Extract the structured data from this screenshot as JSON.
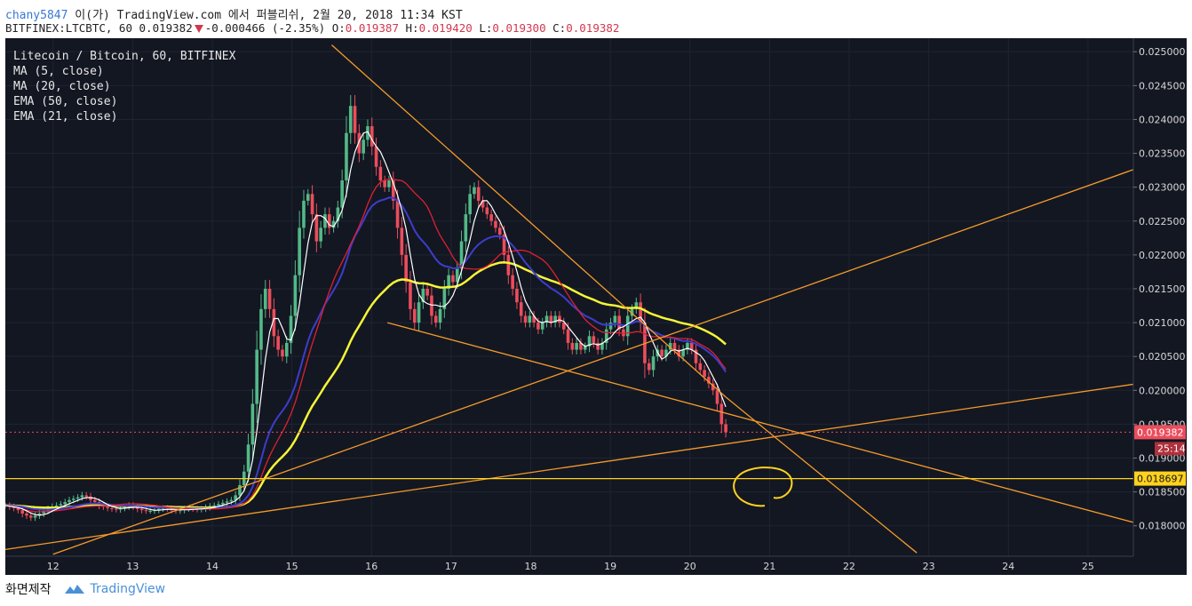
{
  "header": {
    "user": "chany5847",
    "publish_text": " 이(가) TradingView.com 에서 퍼블리쉬, 2월 20, 2018 11:34 KST",
    "symbol_line": "BITFINEX:LTCBTC, 60 0.019382",
    "change": "-0.000466 (-2.35%)",
    "o_label": "O:",
    "o_value": "0.019387",
    "h_label": "H:",
    "h_value": "0.019420",
    "l_label": "L:",
    "l_value": "0.019300",
    "c_label": "C:",
    "c_value": "0.019382"
  },
  "legend": {
    "title": "Litecoin / Bitcoin, 60, BITFINEX",
    "ma5": "MA (5, close)",
    "ma20": "MA (20, close)",
    "ema50": "EMA (50, close)",
    "ema21": "EMA (21, close)"
  },
  "footer": {
    "label": "화면제작",
    "brand": "TradingView"
  },
  "colors": {
    "background": "#131722",
    "up": "#53b987",
    "down": "#eb4d5c",
    "ma5": "#ffffff",
    "ma20": "#e0202e",
    "ema50": "#f5f537",
    "ema21": "#3d3dcc",
    "trendline": "#f59b2a",
    "support_line": "#ffd21e",
    "current_price_line": "#eb4d5c"
  },
  "chart_data": {
    "type": "candlestick",
    "symbol": "LTCBTC",
    "exchange": "BITFINEX",
    "interval": "60",
    "y_range": [
      0.01755,
      0.0252
    ],
    "y_ticks": [
      "0.025000",
      "0.024500",
      "0.024000",
      "0.023500",
      "0.023000",
      "0.022500",
      "0.022000",
      "0.021500",
      "0.021000",
      "0.020500",
      "0.020000",
      "0.019500",
      "0.019000",
      "0.018500",
      "0.018000"
    ],
    "x_range": [
      11.4,
      25.57
    ],
    "x_ticks": [
      "12",
      "13",
      "14",
      "15",
      "16",
      "17",
      "18",
      "19",
      "20",
      "21",
      "22",
      "23",
      "24",
      "25"
    ],
    "current_price": "0.019382",
    "countdown": "25:14",
    "support_level": "0.018697",
    "trendlines": [
      {
        "from": [
          15.5,
          0.0251
        ],
        "to": [
          20.45,
          0.0199
        ]
      },
      {
        "from": [
          20.45,
          0.0199
        ],
        "to": [
          22.85,
          0.0176
        ]
      },
      {
        "from": [
          16.2,
          0.021
        ],
        "to": [
          25.57,
          0.01805
        ]
      },
      {
        "from": [
          11.4,
          0.01765
        ],
        "to": [
          25.57,
          0.02009
        ]
      },
      {
        "from": [
          12.0,
          0.01758
        ],
        "to": [
          25.57,
          0.02326
        ]
      }
    ],
    "closes": [
      0.0183,
      0.01828,
      0.01826,
      0.01823,
      0.01818,
      0.01815,
      0.01812,
      0.01815,
      0.01818,
      0.01822,
      0.01825,
      0.01828,
      0.0183,
      0.01832,
      0.01835,
      0.01838,
      0.0184,
      0.01842,
      0.01845,
      0.01843,
      0.01838,
      0.01835,
      0.0183,
      0.01828,
      0.01826,
      0.01825,
      0.01824,
      0.01826,
      0.01828,
      0.0183,
      0.01828,
      0.01825,
      0.01823,
      0.01822,
      0.01822,
      0.01823,
      0.01825,
      0.01826,
      0.01825,
      0.01823,
      0.01822,
      0.01823,
      0.01825,
      0.01826,
      0.01825,
      0.01824,
      0.01825,
      0.01827,
      0.01829,
      0.0183,
      0.01832,
      0.01834,
      0.01836,
      0.01838,
      0.01845,
      0.0186,
      0.0188,
      0.0192,
      0.0198,
      0.0206,
      0.0212,
      0.0215,
      0.0212,
      0.0208,
      0.0206,
      0.0205,
      0.0207,
      0.0211,
      0.0217,
      0.0224,
      0.0228,
      0.0229,
      0.0226,
      0.0222,
      0.0224,
      0.0226,
      0.0224,
      0.0225,
      0.0227,
      0.0231,
      0.0238,
      0.0242,
      0.0238,
      0.0235,
      0.0237,
      0.0239,
      0.0236,
      0.0233,
      0.0231,
      0.023,
      0.0231,
      0.0228,
      0.0224,
      0.022,
      0.0216,
      0.0212,
      0.021,
      0.0213,
      0.0215,
      0.0214,
      0.0211,
      0.021,
      0.0212,
      0.0215,
      0.0217,
      0.0216,
      0.0218,
      0.0222,
      0.0226,
      0.0229,
      0.023,
      0.0228,
      0.0227,
      0.0226,
      0.0225,
      0.0224,
      0.0223,
      0.022,
      0.0217,
      0.0215,
      0.0213,
      0.0211,
      0.021,
      0.0211,
      0.021,
      0.0209,
      0.021,
      0.0211,
      0.021,
      0.0211,
      0.021,
      0.0209,
      0.0207,
      0.0206,
      0.0207,
      0.0206,
      0.02065,
      0.0208,
      0.0207,
      0.0206,
      0.0207,
      0.0209,
      0.021,
      0.0211,
      0.0209,
      0.0208,
      0.0211,
      0.0212,
      0.0213,
      0.021,
      0.0204,
      0.0203,
      0.0205,
      0.0206,
      0.0205,
      0.0206,
      0.0207,
      0.0206,
      0.0205,
      0.0206,
      0.0207,
      0.0206,
      0.0204,
      0.0203,
      0.0202,
      0.0201,
      0.02,
      0.0198,
      0.0195,
      0.01938
    ]
  }
}
